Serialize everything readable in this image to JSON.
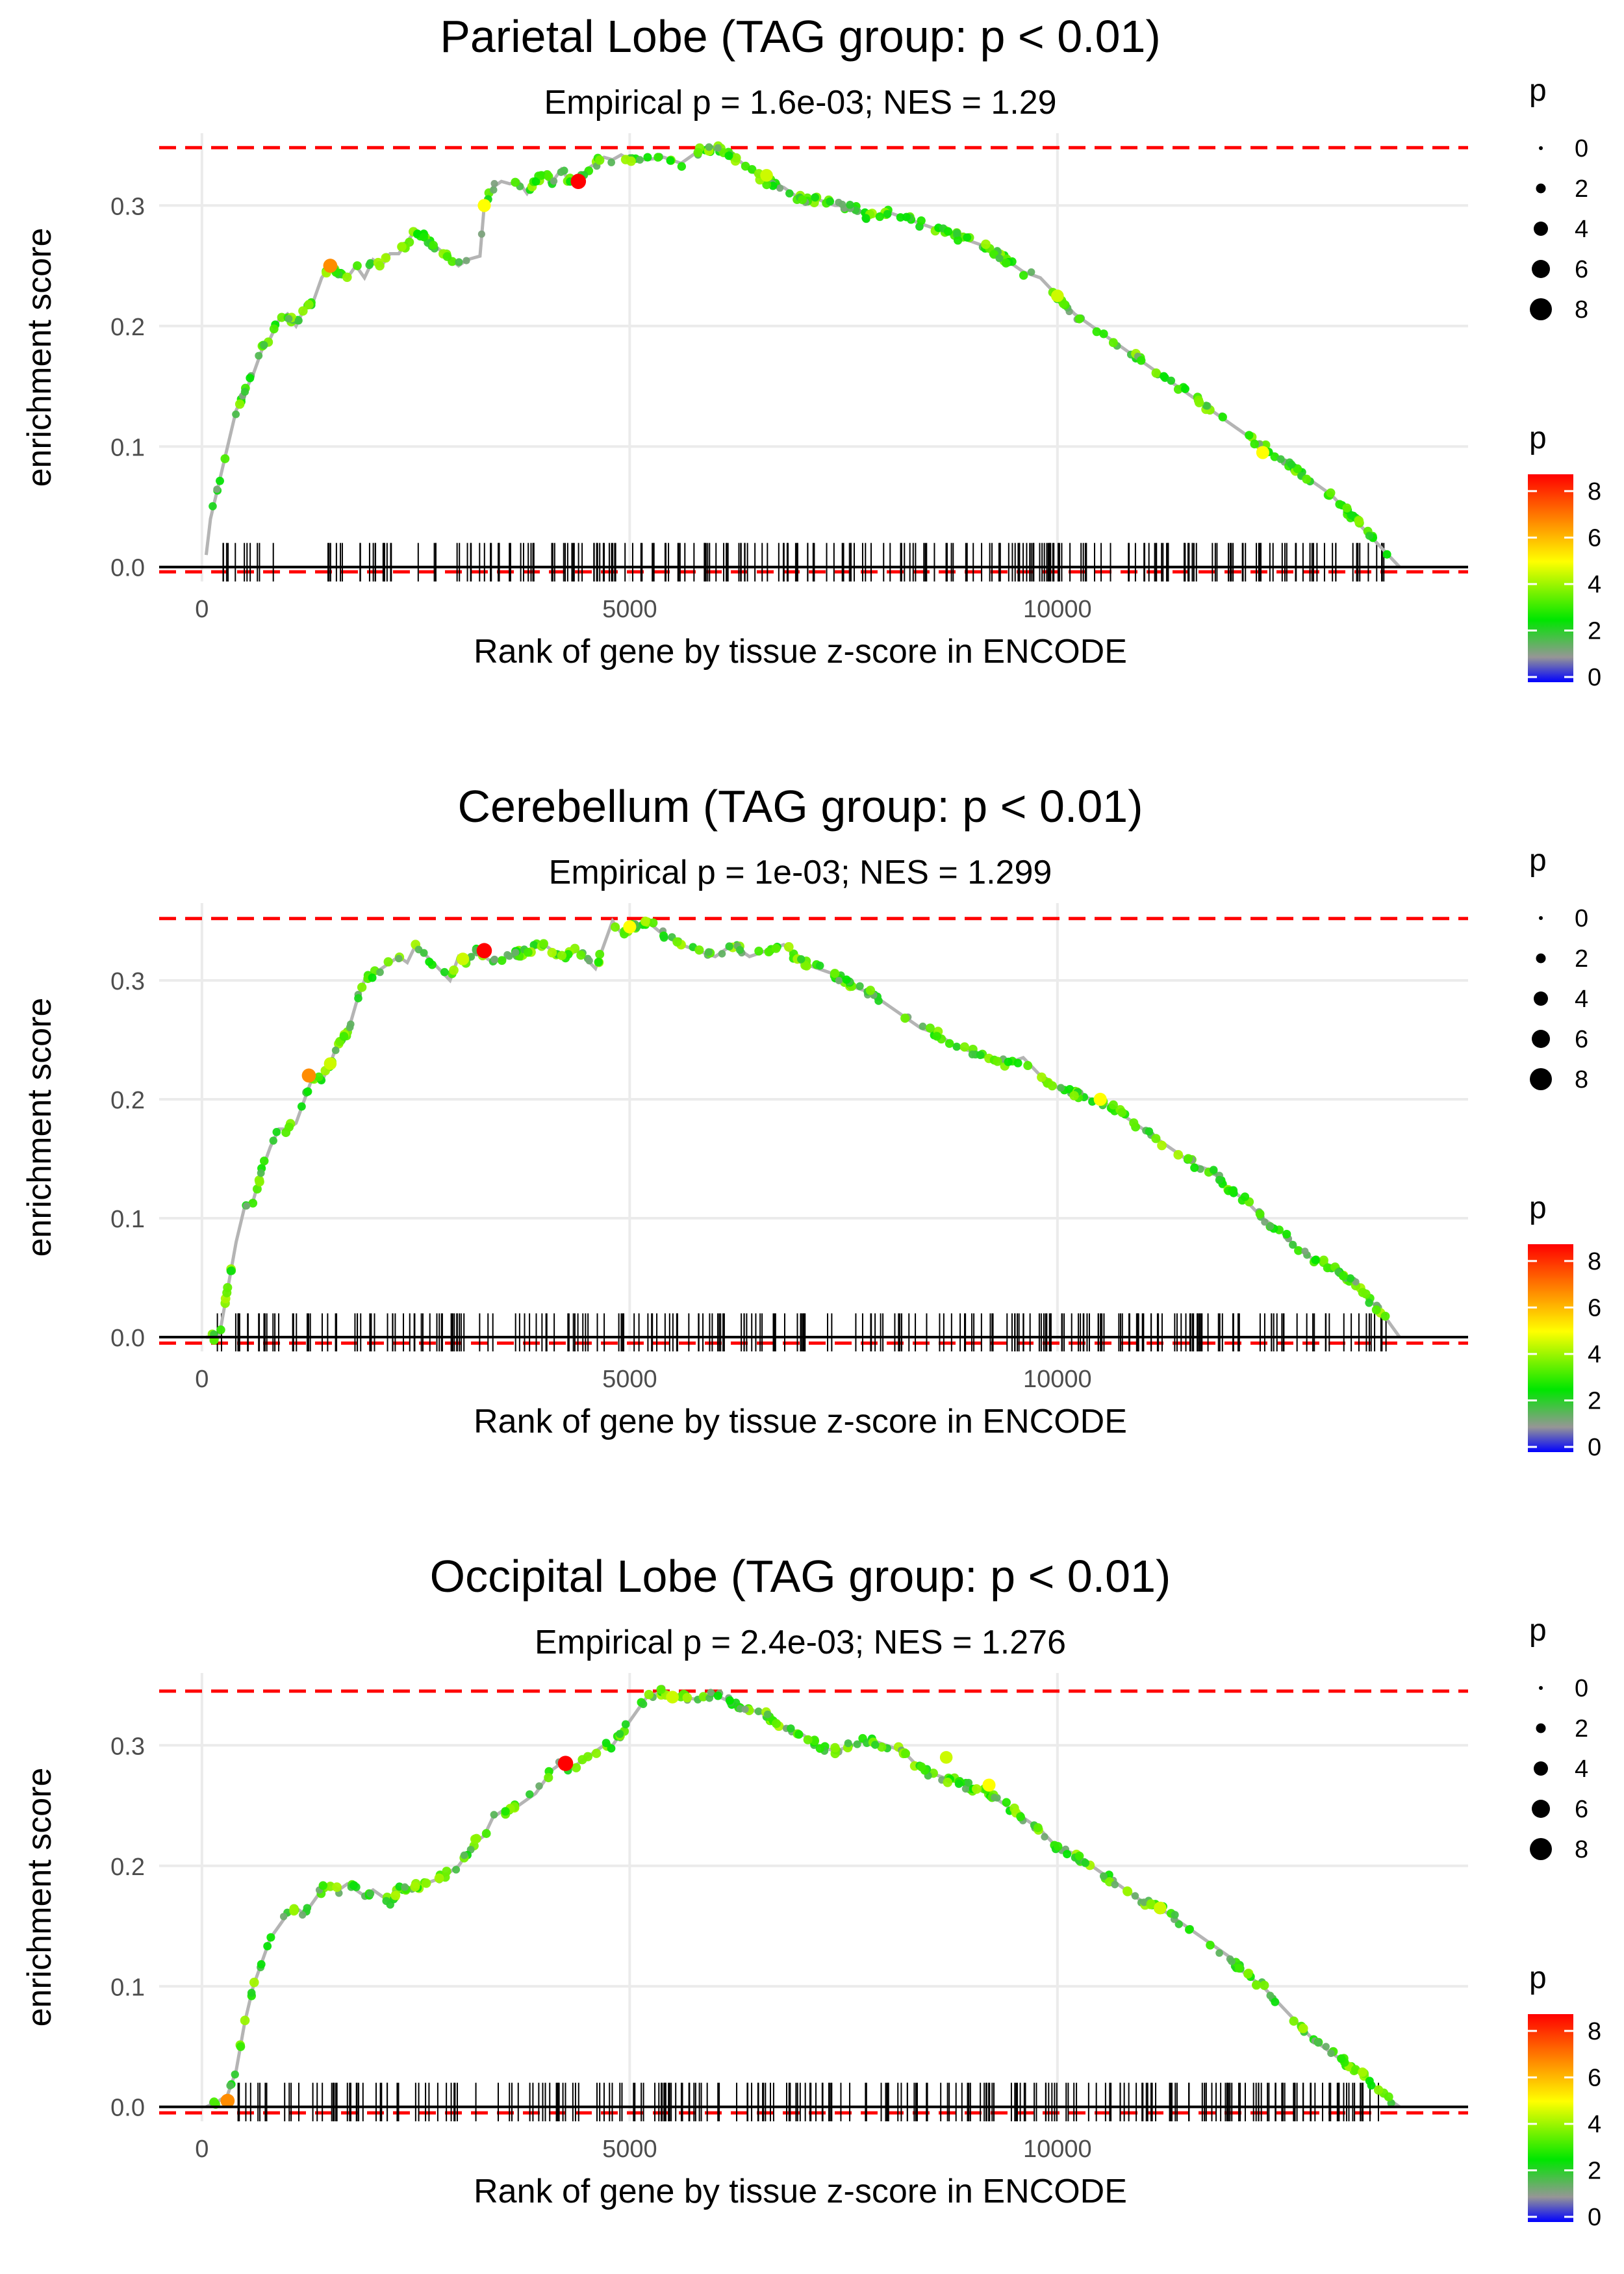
{
  "chart_data": [
    {
      "type": "line",
      "title": "Parietal Lobe (TAG group: p < 0.01)",
      "subtitle": "Empirical p = 1.6e-03; NES = 1.29",
      "xlabel": "Rank of gene by tissue z-score in ENCODE",
      "ylabel": "enrichment score",
      "xlim": [
        -500,
        14800
      ],
      "ylim": [
        -0.012,
        0.36
      ],
      "xticks": [
        0,
        5000,
        10000
      ],
      "xtick_labels": [
        "0",
        "5000",
        "10000"
      ],
      "yticks": [
        0.0,
        0.1,
        0.2,
        0.3
      ],
      "ytick_labels": [
        "0.0",
        "0.1",
        "0.2",
        "0.3"
      ],
      "max_es": 0.348,
      "min_es": -0.004,
      "curve_x": [
        50,
        100,
        200,
        300,
        400,
        500,
        600,
        700,
        800,
        900,
        1000,
        1100,
        1200,
        1300,
        1400,
        1500,
        1600,
        1700,
        1800,
        1900,
        2000,
        2100,
        2200,
        2300,
        2400,
        2500,
        3000,
        3100,
        3250,
        3300,
        3400,
        3500,
        3600,
        3700,
        3800,
        3900,
        4000,
        4100,
        4200,
        4300,
        4400,
        4500,
        4600,
        4700,
        4800,
        4900,
        5000,
        5200,
        5400,
        5600,
        5800,
        6000,
        6200,
        6400,
        6600,
        6800,
        7000,
        7200,
        7400,
        7600,
        7800,
        8000,
        8200,
        8400,
        8600,
        8800,
        9000,
        9200,
        9400,
        9600,
        9800,
        10000,
        10200,
        10400,
        10600,
        10800,
        11000,
        11200,
        11400,
        11600,
        11800,
        12000,
        12200,
        12400,
        12600,
        12800,
        13000,
        13200,
        13400,
        13600,
        13800,
        14000
      ],
      "curve_y": [
        0.01,
        0.04,
        0.07,
        0.1,
        0.13,
        0.145,
        0.16,
        0.18,
        0.19,
        0.205,
        0.21,
        0.2,
        0.215,
        0.22,
        0.24,
        0.25,
        0.245,
        0.24,
        0.25,
        0.24,
        0.255,
        0.25,
        0.26,
        0.26,
        0.27,
        0.28,
        0.25,
        0.255,
        0.258,
        0.3,
        0.315,
        0.32,
        0.318,
        0.32,
        0.31,
        0.322,
        0.325,
        0.32,
        0.33,
        0.32,
        0.32,
        0.33,
        0.335,
        0.34,
        0.338,
        0.342,
        0.338,
        0.338,
        0.34,
        0.335,
        0.345,
        0.348,
        0.342,
        0.33,
        0.32,
        0.315,
        0.305,
        0.305,
        0.3,
        0.3,
        0.29,
        0.295,
        0.29,
        0.285,
        0.28,
        0.275,
        0.27,
        0.265,
        0.255,
        0.245,
        0.24,
        0.225,
        0.21,
        0.2,
        0.19,
        0.18,
        0.17,
        0.16,
        0.15,
        0.14,
        0.13,
        0.12,
        0.11,
        0.1,
        0.09,
        0.08,
        0.07,
        0.06,
        0.045,
        0.03,
        0.015,
        0.0
      ],
      "highlight_points": [
        {
          "x": 4400,
          "y": 0.32,
          "p": 8.5
        },
        {
          "x": 1500,
          "y": 0.25,
          "p": 6.5
        },
        {
          "x": 3300,
          "y": 0.3,
          "p": 5
        },
        {
          "x": 12400,
          "y": 0.095,
          "p": 5
        },
        {
          "x": 6600,
          "y": 0.325,
          "p": 4.5
        },
        {
          "x": 10000,
          "y": 0.225,
          "p": 4.5
        }
      ],
      "legend": {
        "size_title": "p",
        "size_labels": [
          "0",
          "2",
          "4",
          "6",
          "8"
        ],
        "color_title": "p",
        "color_labels": [
          "0",
          "2",
          "4",
          "6",
          "8"
        ]
      }
    },
    {
      "type": "line",
      "title": "Cerebellum (TAG group: p < 0.01)",
      "subtitle": "Empirical p = 1e-03; NES = 1.299",
      "xlabel": "Rank of gene by tissue z-score in ENCODE",
      "ylabel": "enrichment score",
      "xlim": [
        -500,
        14800
      ],
      "ylim": [
        -0.012,
        0.365
      ],
      "xticks": [
        0,
        5000,
        10000
      ],
      "xtick_labels": [
        "0",
        "5000",
        "10000"
      ],
      "yticks": [
        0.0,
        0.1,
        0.2,
        0.3
      ],
      "ytick_labels": [
        "0.0",
        "0.1",
        "0.2",
        "0.3"
      ],
      "max_es": 0.352,
      "min_es": -0.005,
      "curve_x": [
        50,
        200,
        300,
        400,
        500,
        600,
        700,
        800,
        900,
        1000,
        1100,
        1200,
        1300,
        1400,
        1500,
        1600,
        1700,
        1800,
        1900,
        2000,
        2100,
        2200,
        2300,
        2400,
        2500,
        2900,
        3000,
        3100,
        3200,
        3300,
        3400,
        3600,
        3800,
        4000,
        4200,
        4400,
        4600,
        4700,
        4800,
        4900,
        5000,
        5200,
        5400,
        5600,
        5800,
        6000,
        6200,
        6400,
        6600,
        6800,
        7000,
        7200,
        7400,
        7600,
        7800,
        8000,
        8200,
        8400,
        8600,
        8800,
        9000,
        9200,
        9400,
        9600,
        9800,
        10000,
        10200,
        10400,
        10600,
        10800,
        11000,
        11200,
        11400,
        11600,
        11800,
        12000,
        12200,
        12400,
        12600,
        12800,
        13000,
        13200,
        13400,
        13600,
        13800,
        14000
      ],
      "curve_y": [
        0.0,
        0.0,
        0.04,
        0.08,
        0.11,
        0.115,
        0.14,
        0.16,
        0.175,
        0.175,
        0.18,
        0.2,
        0.22,
        0.215,
        0.23,
        0.25,
        0.255,
        0.28,
        0.3,
        0.305,
        0.31,
        0.315,
        0.32,
        0.315,
        0.33,
        0.3,
        0.32,
        0.315,
        0.325,
        0.32,
        0.315,
        0.32,
        0.325,
        0.33,
        0.32,
        0.325,
        0.31,
        0.33,
        0.35,
        0.34,
        0.345,
        0.35,
        0.338,
        0.33,
        0.325,
        0.32,
        0.33,
        0.32,
        0.325,
        0.33,
        0.315,
        0.31,
        0.305,
        0.295,
        0.29,
        0.28,
        0.27,
        0.26,
        0.255,
        0.245,
        0.24,
        0.235,
        0.23,
        0.235,
        0.22,
        0.21,
        0.205,
        0.2,
        0.195,
        0.185,
        0.175,
        0.165,
        0.155,
        0.145,
        0.14,
        0.125,
        0.115,
        0.1,
        0.09,
        0.075,
        0.065,
        0.06,
        0.05,
        0.035,
        0.02,
        0.0
      ],
      "highlight_points": [
        {
          "x": 3300,
          "y": 0.325,
          "p": 8.5
        },
        {
          "x": 1250,
          "y": 0.22,
          "p": 6.5
        },
        {
          "x": 5000,
          "y": 0.345,
          "p": 5
        },
        {
          "x": 3050,
          "y": 0.318,
          "p": 4.5
        },
        {
          "x": 10500,
          "y": 0.2,
          "p": 5
        },
        {
          "x": 1500,
          "y": 0.23,
          "p": 4.5
        }
      ],
      "legend": {
        "size_title": "p",
        "size_labels": [
          "0",
          "2",
          "4",
          "6",
          "8"
        ],
        "color_title": "p",
        "color_labels": [
          "0",
          "2",
          "4",
          "6",
          "8"
        ]
      }
    },
    {
      "type": "line",
      "title": "Occipital Lobe (TAG group: p < 0.01)",
      "subtitle": "Empirical p = 2.4e-03; NES = 1.276",
      "xlabel": "Rank of gene by tissue z-score in ENCODE",
      "ylabel": "enrichment score",
      "xlim": [
        -500,
        14800
      ],
      "ylim": [
        -0.012,
        0.36
      ],
      "xticks": [
        0,
        5000,
        10000
      ],
      "xtick_labels": [
        "0",
        "5000",
        "10000"
      ],
      "yticks": [
        0.0,
        0.1,
        0.2,
        0.3
      ],
      "ytick_labels": [
        "0.0",
        "0.1",
        "0.2",
        "0.3"
      ],
      "max_es": 0.345,
      "min_es": -0.005,
      "curve_x": [
        50,
        200,
        300,
        400,
        500,
        600,
        700,
        800,
        900,
        1000,
        1100,
        1200,
        1300,
        1400,
        1500,
        1600,
        1700,
        1800,
        1900,
        2000,
        2100,
        2200,
        2300,
        2400,
        2600,
        2800,
        3000,
        3100,
        3200,
        3300,
        3400,
        3500,
        3600,
        3700,
        3800,
        3900,
        4000,
        4100,
        4200,
        4300,
        4400,
        4500,
        4600,
        4700,
        4800,
        4900,
        5000,
        5200,
        5400,
        5600,
        5800,
        6000,
        6200,
        6400,
        6600,
        6800,
        7000,
        7200,
        7400,
        7600,
        7800,
        8000,
        8200,
        8400,
        8600,
        8800,
        9000,
        9200,
        9400,
        9600,
        9800,
        10000,
        10200,
        10400,
        10600,
        10800,
        11000,
        11200,
        11400,
        11600,
        11800,
        12000,
        12200,
        12400,
        12600,
        12800,
        13000,
        13200,
        13400,
        13600,
        13800,
        14000
      ],
      "curve_y": [
        0.0,
        0.005,
        0.01,
        0.03,
        0.07,
        0.1,
        0.12,
        0.14,
        0.15,
        0.16,
        0.165,
        0.16,
        0.17,
        0.18,
        0.185,
        0.18,
        0.185,
        0.18,
        0.175,
        0.18,
        0.175,
        0.17,
        0.18,
        0.18,
        0.185,
        0.19,
        0.2,
        0.21,
        0.22,
        0.225,
        0.24,
        0.245,
        0.245,
        0.25,
        0.255,
        0.26,
        0.27,
        0.28,
        0.285,
        0.28,
        0.285,
        0.29,
        0.295,
        0.3,
        0.3,
        0.31,
        0.32,
        0.34,
        0.345,
        0.34,
        0.338,
        0.342,
        0.335,
        0.33,
        0.325,
        0.315,
        0.31,
        0.3,
        0.295,
        0.3,
        0.305,
        0.3,
        0.295,
        0.28,
        0.275,
        0.27,
        0.265,
        0.26,
        0.25,
        0.24,
        0.23,
        0.215,
        0.21,
        0.2,
        0.19,
        0.18,
        0.17,
        0.165,
        0.155,
        0.145,
        0.135,
        0.125,
        0.11,
        0.1,
        0.085,
        0.07,
        0.055,
        0.045,
        0.035,
        0.025,
        0.01,
        0.0
      ],
      "highlight_points": [
        {
          "x": 4250,
          "y": 0.285,
          "p": 8.5
        },
        {
          "x": 300,
          "y": 0.005,
          "p": 6.5
        },
        {
          "x": 9200,
          "y": 0.267,
          "p": 5
        },
        {
          "x": 8700,
          "y": 0.29,
          "p": 4.5
        },
        {
          "x": 11200,
          "y": 0.165,
          "p": 4.5
        },
        {
          "x": 5500,
          "y": 0.34,
          "p": 4.5
        }
      ],
      "legend": {
        "size_title": "p",
        "size_labels": [
          "0",
          "2",
          "4",
          "6",
          "8"
        ],
        "color_title": "p",
        "color_labels": [
          "0",
          "2",
          "4",
          "6",
          "8"
        ]
      }
    }
  ]
}
